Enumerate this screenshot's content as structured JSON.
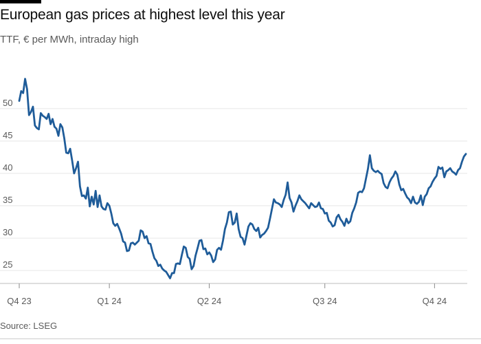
{
  "header": {
    "title": "European gas prices at highest level this year",
    "subtitle": "TTF, € per MWh, intraday high"
  },
  "footer": {
    "source": "Source: LSEG"
  },
  "colors": {
    "line": "#1f5c99",
    "grid": "#e6e6e6",
    "axis_text": "#5a5a5a",
    "text": "#0d0d0d"
  },
  "chart_data": {
    "type": "line",
    "title": "European gas prices at highest level this year",
    "subtitle": "TTF, € per MWh, intraday high",
    "ylim": [
      23,
      57
    ],
    "y_ticks": [
      25,
      30,
      35,
      40,
      45,
      50
    ],
    "x_tick_labels": [
      "Q4 23",
      "Q1 24",
      "Q2 24",
      "Q3 24",
      "Q4 24"
    ],
    "grid": "horizontal",
    "legend": "none",
    "series": [
      {
        "values": [
          51.2,
          52.7,
          52.4,
          54.6,
          53.0,
          49.0,
          49.5,
          50.3,
          47.4,
          47.0,
          46.8,
          49.3,
          48.9,
          48.7,
          48.4,
          49.2,
          47.6,
          48.4,
          47.2,
          46.9,
          45.8,
          47.6,
          47.1,
          45.4,
          43.2,
          43.1,
          43.8,
          42.0,
          40.0,
          40.8,
          41.8,
          38.0,
          36.5,
          36.6,
          36.1,
          37.8,
          34.9,
          36.4,
          35.2,
          37.3,
          34.8,
          36.6,
          34.9,
          34.5,
          34.4,
          35.4,
          35.0,
          33.8,
          32.3,
          31.9,
          32.2,
          31.5,
          30.7,
          29.5,
          29.3,
          28.0,
          28.1,
          29.2,
          29.3,
          29.0,
          29.3,
          29.6,
          31.2,
          31.0,
          30.0,
          30.3,
          29.2,
          29.1,
          27.9,
          26.9,
          26.5,
          25.7,
          25.9,
          25.3,
          25.0,
          24.8,
          24.3,
          23.8,
          24.6,
          24.6,
          26.0,
          26.1,
          26.0,
          27.4,
          28.7,
          28.5,
          27.1,
          26.8,
          25.2,
          25.7,
          27.3,
          28.4,
          29.6,
          29.7,
          28.3,
          28.4,
          27.5,
          27.8,
          27.3,
          26.3,
          26.7,
          28.2,
          28.5,
          28.2,
          29.6,
          31.4,
          32.4,
          34.0,
          34.1,
          32.1,
          32.4,
          33.8,
          31.4,
          30.2,
          30.0,
          29.0,
          30.4,
          31.8,
          32.3,
          32.1,
          31.4,
          31.1,
          31.6,
          30.1,
          30.5,
          30.7,
          31.1,
          31.6,
          33.0,
          34.5,
          36.0,
          35.5,
          35.4,
          35.2,
          34.8,
          35.9,
          36.7,
          38.6,
          36.2,
          35.5,
          34.1,
          35.0,
          35.7,
          36.6,
          36.0,
          35.7,
          35.4,
          35.0,
          34.6,
          35.4,
          35.1,
          34.8,
          34.9,
          35.5,
          34.6,
          34.5,
          33.8,
          33.9,
          32.7,
          32.4,
          31.8,
          32.0,
          33.2,
          33.6,
          32.9,
          32.5,
          31.9,
          33.0,
          32.3,
          32.6,
          33.9,
          34.6,
          35.5,
          37.0,
          37.2,
          37.1,
          37.7,
          39.2,
          40.7,
          42.8,
          40.8,
          40.4,
          40.2,
          40.4,
          40.1,
          39.9,
          38.5,
          37.9,
          37.7,
          38.6,
          39.2,
          39.6,
          40.3,
          39.8,
          38.3,
          37.4,
          37.6,
          36.9,
          36.3,
          36.0,
          35.4,
          36.4,
          35.5,
          35.3,
          35.6,
          36.6,
          35.1,
          36.4,
          36.8,
          37.7,
          38.0,
          38.7,
          39.2,
          39.6,
          41.0,
          40.7,
          40.9,
          39.4,
          40.3,
          40.5,
          40.8,
          40.3,
          40.1,
          39.8,
          40.5,
          40.8,
          41.8,
          42.6,
          43.0
        ]
      }
    ]
  }
}
